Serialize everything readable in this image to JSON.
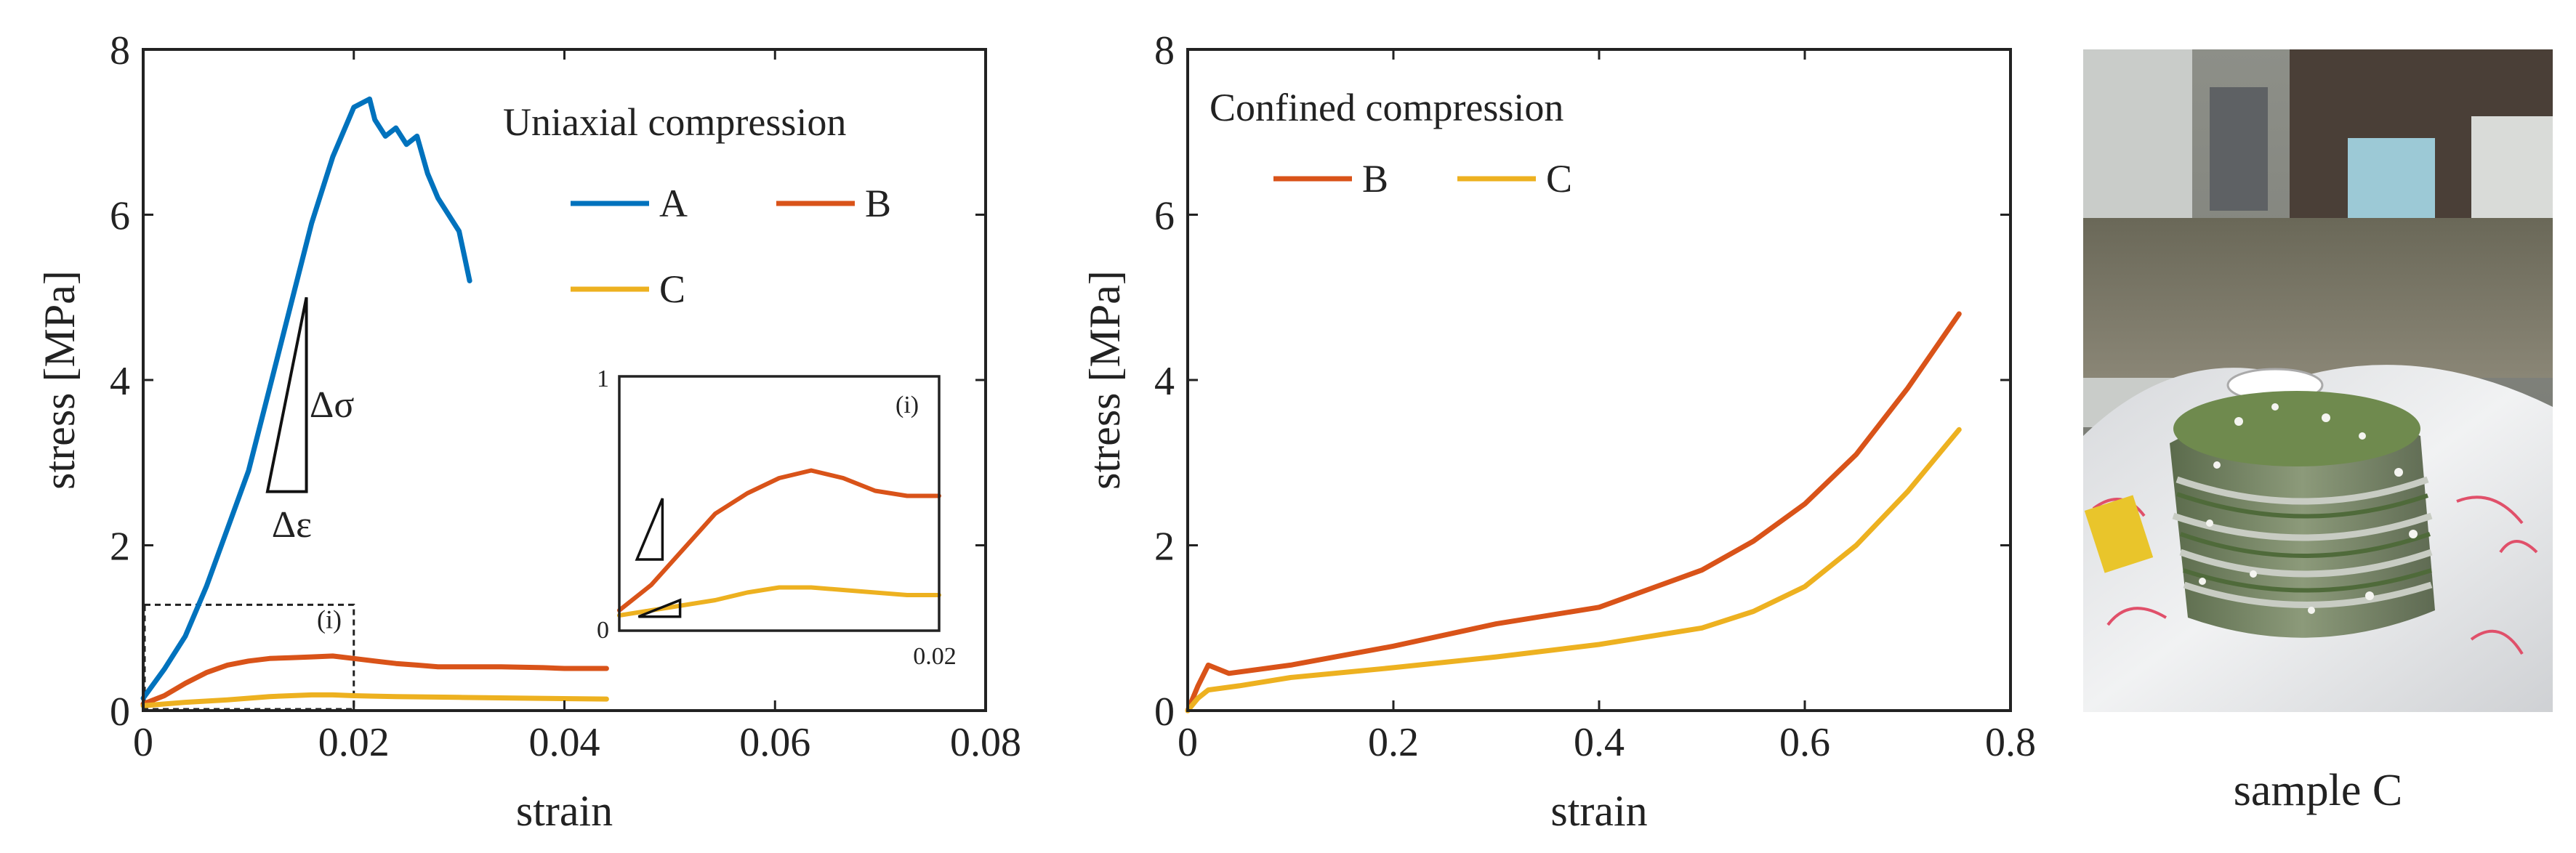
{
  "colors": {
    "A": "#0072BD",
    "B": "#D95319",
    "C": "#EDB120",
    "axis": "#222222"
  },
  "photo_caption": "sample C",
  "chart_data": [
    {
      "type": "line",
      "legend_title": "Uniaxial compression",
      "xlabel": "strain",
      "ylabel": "stress [MPa]",
      "xlim": [
        0,
        0.08
      ],
      "ylim": [
        0,
        8
      ],
      "xticks": [
        0,
        0.02,
        0.04,
        0.06,
        0.08
      ],
      "xtick_labels": [
        "0",
        "0.02",
        "0.04",
        "0.06",
        "0.08"
      ],
      "yticks": [
        0,
        2,
        4,
        6,
        8
      ],
      "ytick_labels": [
        "0",
        "2",
        "4",
        "6",
        "8"
      ],
      "legend_placement": "top-right",
      "slope_labels": [
        "Δσ",
        "Δε"
      ],
      "zoom_box_label": "(i)",
      "series": [
        {
          "name": "A",
          "x": [
            0,
            0.002,
            0.004,
            0.006,
            0.008,
            0.01,
            0.012,
            0.014,
            0.016,
            0.018,
            0.02,
            0.0215,
            0.022,
            0.023,
            0.024,
            0.025,
            0.026,
            0.027,
            0.028,
            0.029,
            0.03,
            0.0305,
            0.031
          ],
          "y": [
            0.15,
            0.5,
            0.9,
            1.5,
            2.2,
            2.9,
            3.9,
            4.9,
            5.9,
            6.7,
            7.3,
            7.4,
            7.15,
            6.95,
            7.05,
            6.85,
            6.95,
            6.5,
            6.2,
            6.0,
            5.8,
            5.5,
            5.2
          ]
        },
        {
          "name": "B",
          "x": [
            0,
            0.002,
            0.004,
            0.006,
            0.008,
            0.01,
            0.012,
            0.014,
            0.016,
            0.018,
            0.02,
            0.022,
            0.024,
            0.026,
            0.028,
            0.03,
            0.034,
            0.038,
            0.04,
            0.044
          ],
          "y": [
            0.08,
            0.18,
            0.33,
            0.46,
            0.55,
            0.6,
            0.63,
            0.64,
            0.65,
            0.66,
            0.63,
            0.6,
            0.57,
            0.55,
            0.53,
            0.53,
            0.53,
            0.52,
            0.51,
            0.51
          ]
        },
        {
          "name": "C",
          "x": [
            0,
            0.004,
            0.008,
            0.012,
            0.016,
            0.018,
            0.02,
            0.024,
            0.03,
            0.036,
            0.044
          ],
          "y": [
            0.06,
            0.1,
            0.13,
            0.17,
            0.19,
            0.19,
            0.18,
            0.17,
            0.16,
            0.15,
            0.14
          ]
        }
      ],
      "inset": {
        "label": "(i)",
        "xlim": [
          0,
          0.02
        ],
        "ylim": [
          0,
          1
        ],
        "xtick_labels": [
          "0",
          "0.02"
        ],
        "ytick_labels": [
          "0",
          "1"
        ],
        "series": [
          {
            "name": "B",
            "x": [
              0,
              0.002,
              0.004,
              0.006,
              0.008,
              0.01,
              0.012,
              0.014,
              0.016,
              0.018,
              0.02
            ],
            "y": [
              0.08,
              0.18,
              0.32,
              0.46,
              0.54,
              0.6,
              0.63,
              0.6,
              0.55,
              0.53,
              0.53
            ]
          },
          {
            "name": "C",
            "x": [
              0,
              0.002,
              0.004,
              0.006,
              0.008,
              0.01,
              0.012,
              0.014,
              0.016,
              0.018,
              0.02
            ],
            "y": [
              0.06,
              0.08,
              0.1,
              0.12,
              0.15,
              0.17,
              0.17,
              0.16,
              0.15,
              0.14,
              0.14
            ]
          }
        ]
      }
    },
    {
      "type": "line",
      "legend_title": "Confined compression",
      "xlabel": "strain",
      "ylabel": "stress [MPa]",
      "xlim": [
        0,
        0.8
      ],
      "ylim": [
        0,
        8
      ],
      "xticks": [
        0,
        0.2,
        0.4,
        0.6,
        0.8
      ],
      "xtick_labels": [
        "0",
        "0.2",
        "0.4",
        "0.6",
        "0.8"
      ],
      "yticks": [
        0,
        2,
        4,
        6,
        8
      ],
      "ytick_labels": [
        "0",
        "2",
        "4",
        "6",
        "8"
      ],
      "legend_placement": "top-left",
      "series": [
        {
          "name": "B",
          "x": [
            0,
            0.01,
            0.02,
            0.04,
            0.1,
            0.2,
            0.3,
            0.4,
            0.5,
            0.55,
            0.6,
            0.65,
            0.7,
            0.75
          ],
          "y": [
            0,
            0.3,
            0.55,
            0.45,
            0.55,
            0.78,
            1.05,
            1.25,
            1.7,
            2.05,
            2.5,
            3.1,
            3.9,
            4.8
          ]
        },
        {
          "name": "C",
          "x": [
            0,
            0.01,
            0.02,
            0.05,
            0.1,
            0.2,
            0.3,
            0.4,
            0.5,
            0.55,
            0.6,
            0.65,
            0.7,
            0.75
          ],
          "y": [
            0,
            0.15,
            0.25,
            0.3,
            0.4,
            0.52,
            0.65,
            0.8,
            1.0,
            1.2,
            1.5,
            2.0,
            2.65,
            3.4
          ]
        }
      ]
    }
  ]
}
